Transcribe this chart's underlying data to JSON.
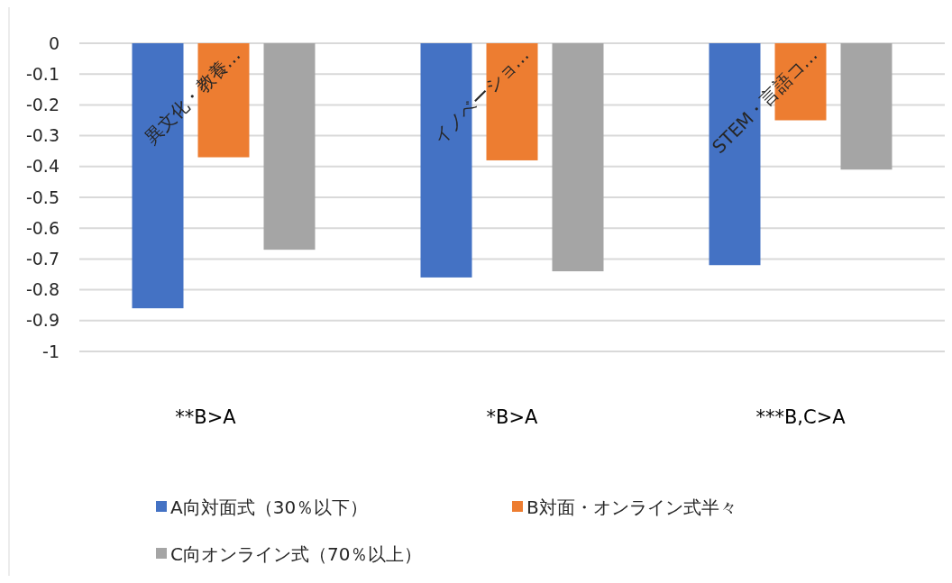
{
  "chart_data": {
    "type": "bar",
    "categories": [
      "異文化・教養…",
      "イノベーショ…",
      "STEM・言語コ…"
    ],
    "series": [
      {
        "name": "A向対面式（30％以下）",
        "color": "#4472c4",
        "values": [
          -0.86,
          -0.76,
          -0.72
        ]
      },
      {
        "name": "B対面・オンライン式半々",
        "color": "#ed7d31",
        "values": [
          -0.37,
          -0.38,
          -0.25
        ]
      },
      {
        "name": "C向オンライン式（70％以上）",
        "color": "#a5a5a5",
        "values": [
          -0.67,
          -0.74,
          -0.41
        ]
      }
    ],
    "ylim": [
      -1,
      0
    ],
    "yticks": [
      0,
      -0.1,
      -0.2,
      -0.3,
      -0.4,
      -0.5,
      -0.6,
      -0.7,
      -0.8,
      -0.9,
      -1
    ],
    "grid": "y",
    "legend": "bottom",
    "annotations": [
      "**B>A",
      "*B>A",
      "***B,C>A"
    ]
  }
}
